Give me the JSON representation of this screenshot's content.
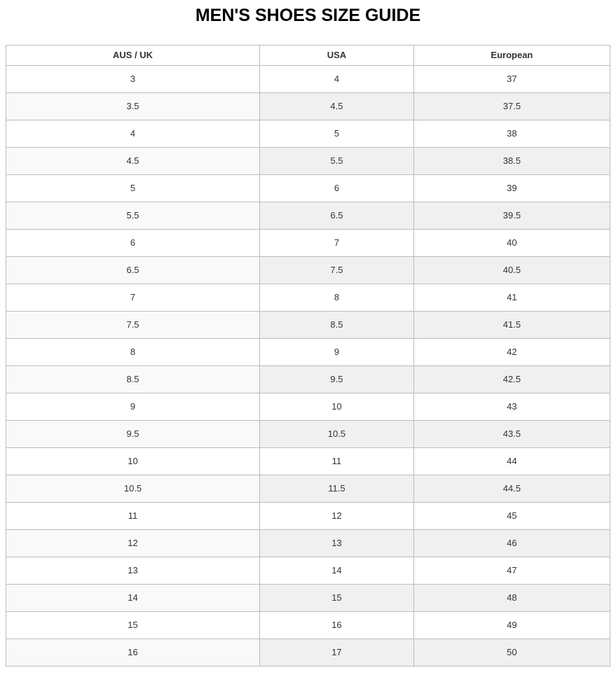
{
  "page_title": "MEN'S SHOES SIZE GUIDE",
  "size_table": {
    "columns": [
      "AUS / UK",
      "USA",
      "European"
    ],
    "rows": [
      [
        "3",
        "4",
        "37"
      ],
      [
        "3.5",
        "4.5",
        "37.5"
      ],
      [
        "4",
        "5",
        "38"
      ],
      [
        "4.5",
        "5.5",
        "38.5"
      ],
      [
        "5",
        "6",
        "39"
      ],
      [
        "5.5",
        "6.5",
        "39.5"
      ],
      [
        "6",
        "7",
        "40"
      ],
      [
        "6.5",
        "7.5",
        "40.5"
      ],
      [
        "7",
        "8",
        "41"
      ],
      [
        "7.5",
        "8.5",
        "41.5"
      ],
      [
        "8",
        "9",
        "42"
      ],
      [
        "8.5",
        "9.5",
        "42.5"
      ],
      [
        "9",
        "10",
        "43"
      ],
      [
        "9.5",
        "10.5",
        "43.5"
      ],
      [
        "10",
        "11",
        "44"
      ],
      [
        "10.5",
        "11.5",
        "44.5"
      ],
      [
        "11",
        "12",
        "45"
      ],
      [
        "12",
        "13",
        "46"
      ],
      [
        "13",
        "14",
        "47"
      ],
      [
        "14",
        "15",
        "48"
      ],
      [
        "15",
        "16",
        "49"
      ],
      [
        "16",
        "17",
        "50"
      ]
    ]
  },
  "colors": {
    "border": "#bcbcbc",
    "text": "#333333",
    "title_text": "#000000",
    "row_default_bg": "#ffffff",
    "stripe_first_col": "#f9f9f9",
    "stripe_other_cols": "#f0f0f0"
  }
}
